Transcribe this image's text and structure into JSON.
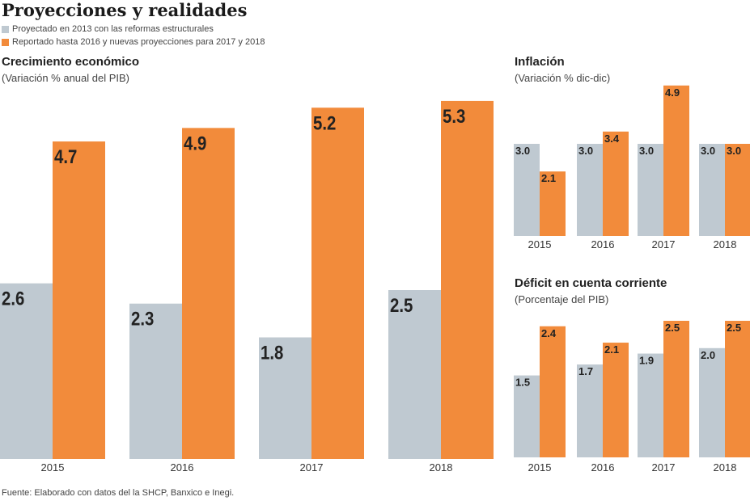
{
  "title": "Proyecciones y realidades",
  "legend": [
    {
      "label": "Proyectado en 2013 con las reformas estructurales",
      "color": "#bfc9d1"
    },
    {
      "label": "Reportado hasta 2016 y nuevas proyecciones para 2017 y 2018",
      "color": "#f28b3b"
    }
  ],
  "source": "Fuente: Elaborado con datos del la SHCP, Banxico e Inegi.",
  "chart_data": [
    {
      "type": "bar",
      "title": "Crecimiento económico",
      "subtitle": "(Variación % anual del PIB)",
      "categories": [
        "2015",
        "2016",
        "2017",
        "2018"
      ],
      "series": [
        {
          "name": "Proyectado en 2013 con las reformas estructurales",
          "values": [
            2.6,
            2.3,
            1.8,
            2.5
          ]
        },
        {
          "name": "Reportado hasta 2016 y nuevas proyecciones para 2017 y 2018",
          "values": [
            4.7,
            4.9,
            5.2,
            5.3
          ]
        }
      ],
      "labels": [
        [
          "2.6",
          "2.3",
          "1.8",
          "2.5"
        ],
        [
          "4.7",
          "4.9",
          "5.2",
          "5.3"
        ]
      ]
    },
    {
      "type": "bar",
      "title": "Inflación",
      "subtitle": "(Variación % dic-dic)",
      "categories": [
        "2015",
        "2016",
        "2017",
        "2018"
      ],
      "series": [
        {
          "name": "Proyectado en 2013 con las reformas estructurales",
          "values": [
            3.0,
            3.0,
            3.0,
            3.0
          ]
        },
        {
          "name": "Reportado hasta 2016 y nuevas proyecciones para 2017 y 2018",
          "values": [
            2.1,
            3.4,
            4.9,
            3.0
          ]
        }
      ],
      "labels": [
        [
          "3.0",
          "3.0",
          "3.0",
          "3.0"
        ],
        [
          "2.1",
          "3.4",
          "4.9",
          "3.0"
        ]
      ]
    },
    {
      "type": "bar",
      "title": "Déficit en cuenta corriente",
      "subtitle": "(Porcentaje del PIB)",
      "categories": [
        "2015",
        "2016",
        "2017",
        "2018"
      ],
      "series": [
        {
          "name": "Proyectado en 2013 con las reformas estructurales",
          "values": [
            1.5,
            1.7,
            1.9,
            2.0
          ]
        },
        {
          "name": "Reportado hasta 2016 y nuevas proyecciones para 2017 y 2018",
          "values": [
            2.4,
            2.1,
            2.5,
            2.5
          ]
        }
      ],
      "labels": [
        [
          "1.5",
          "1.7",
          "1.9",
          "2.0"
        ],
        [
          "2.4",
          "2.1",
          "2.5",
          "2.5"
        ]
      ]
    }
  ]
}
